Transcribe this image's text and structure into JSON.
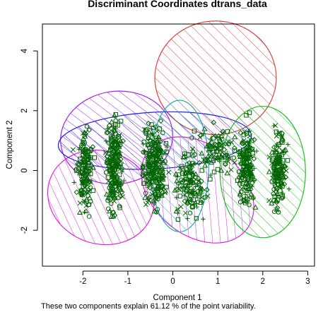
{
  "chart_data": {
    "type": "scatter",
    "title": "Discriminant Coordinates dtrans_data",
    "xlabel": "Component 1",
    "ylabel": "Component 2",
    "xlim": [
      -2.9,
      3.15
    ],
    "ylim": [
      -3.2,
      4.9
    ],
    "xticks": [
      -2,
      -1,
      0,
      1,
      2,
      3
    ],
    "yticks": [
      -2,
      0,
      2,
      4
    ],
    "grid": false,
    "point_color": "#006400",
    "clusters": [
      {
        "cx": -1.95,
        "cy": 0.0,
        "xspread": 0.12,
        "yspread": 1.6,
        "n": 150
      },
      {
        "cx": -1.3,
        "cy": 0.05,
        "xspread": 0.13,
        "yspread": 1.75,
        "n": 230
      },
      {
        "cx": -0.4,
        "cy": 0.2,
        "xspread": 0.18,
        "yspread": 1.5,
        "n": 250
      },
      {
        "cx": 0.4,
        "cy": -0.4,
        "xspread": 0.22,
        "yspread": 1.2,
        "n": 140
      },
      {
        "cx": 1.0,
        "cy": 0.6,
        "xspread": 0.3,
        "yspread": 1.0,
        "n": 90
      },
      {
        "cx": 1.65,
        "cy": 0.1,
        "xspread": 0.13,
        "yspread": 1.45,
        "n": 170
      },
      {
        "cx": 2.35,
        "cy": 0.0,
        "xspread": 0.12,
        "yspread": 1.45,
        "n": 160
      }
    ],
    "group_ellipses": [
      {
        "cx": 0.95,
        "cy": 3.1,
        "rx": 1.35,
        "ry": 1.9,
        "angle": 0,
        "color": "#e04040"
      },
      {
        "cx": -1.25,
        "cy": 1.1,
        "rx": 1.25,
        "ry": 1.55,
        "angle": -8,
        "color": "#a020f0"
      },
      {
        "cx": -1.6,
        "cy": -0.9,
        "rx": 1.2,
        "ry": 1.55,
        "angle": 20,
        "color": "#e020e0"
      },
      {
        "cx": -0.4,
        "cy": 1.0,
        "rx": 2.15,
        "ry": 0.95,
        "angle": -3,
        "color": "#2020f0"
      },
      {
        "cx": 0.55,
        "cy": -0.65,
        "rx": 1.4,
        "ry": 1.5,
        "angle": 40,
        "color": "#e020e0"
      },
      {
        "cx": 2.0,
        "cy": -0.05,
        "rx": 0.95,
        "ry": 2.2,
        "angle": 0,
        "color": "#20c020"
      },
      {
        "cx": 0.15,
        "cy": 0.15,
        "rx": 0.65,
        "ry": 2.2,
        "angle": 0,
        "color": "#20b0b0"
      }
    ],
    "footnote": "These two components explain 61.12 % of the point variability."
  }
}
